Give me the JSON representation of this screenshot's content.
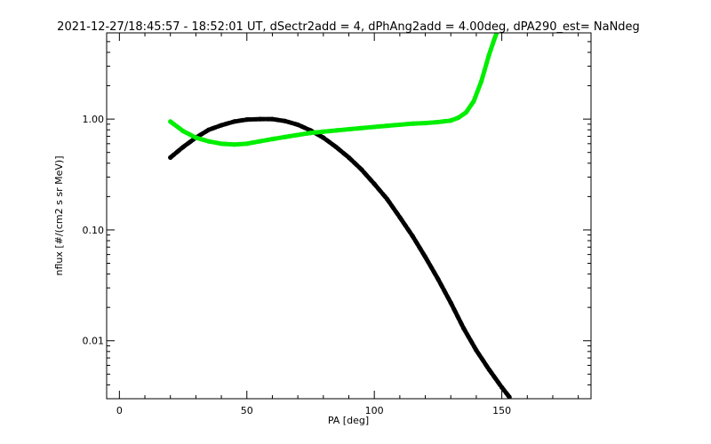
{
  "chart_data": {
    "type": "scatter",
    "title": "2021-12-27/18:45:57 - 18:52:01 UT, dSectr2add = 4, dPhAng2add = 4.00deg, dPA290_est=   NaNdeg",
    "xlabel": "PA [deg]",
    "ylabel": "nflux [#/(cm2 s sr MeV)]",
    "xlim": [
      -5,
      185
    ],
    "ylim": [
      0.003,
      6
    ],
    "yscale": "log",
    "x_ticks": [
      {
        "value": 0,
        "label": "0"
      },
      {
        "value": 50,
        "label": "50"
      },
      {
        "value": 100,
        "label": "100"
      },
      {
        "value": 150,
        "label": "150"
      }
    ],
    "y_ticks": [
      {
        "value": 0.01,
        "label": "0.01"
      },
      {
        "value": 0.1,
        "label": "0.10"
      },
      {
        "value": 1,
        "label": "1.00"
      }
    ],
    "series": [
      {
        "color": "#000000",
        "x": [
          20,
          25,
          30,
          35,
          40,
          45,
          50,
          55,
          60,
          65,
          70,
          75,
          80,
          85,
          90,
          95,
          100,
          105,
          110,
          115,
          120,
          125,
          130,
          135,
          140,
          145,
          150,
          153
        ],
        "y": [
          0.45,
          0.56,
          0.68,
          0.8,
          0.88,
          0.95,
          0.99,
          1.0,
          1.0,
          0.96,
          0.89,
          0.79,
          0.68,
          0.56,
          0.45,
          0.35,
          0.26,
          0.19,
          0.13,
          0.088,
          0.057,
          0.036,
          0.022,
          0.013,
          0.0082,
          0.0055,
          0.0038,
          0.0031
        ]
      },
      {
        "color": "#00ee00",
        "x": [
          20,
          25,
          30,
          35,
          40,
          45,
          50,
          55,
          60,
          65,
          70,
          75,
          80,
          85,
          90,
          95,
          100,
          105,
          110,
          115,
          120,
          125,
          130,
          133,
          136,
          139,
          142,
          145,
          147,
          148
        ],
        "y": [
          0.95,
          0.78,
          0.68,
          0.63,
          0.6,
          0.59,
          0.6,
          0.63,
          0.66,
          0.69,
          0.72,
          0.75,
          0.77,
          0.79,
          0.81,
          0.83,
          0.85,
          0.87,
          0.89,
          0.91,
          0.92,
          0.94,
          0.97,
          1.03,
          1.15,
          1.45,
          2.2,
          3.8,
          5.2,
          6.0
        ]
      }
    ]
  }
}
